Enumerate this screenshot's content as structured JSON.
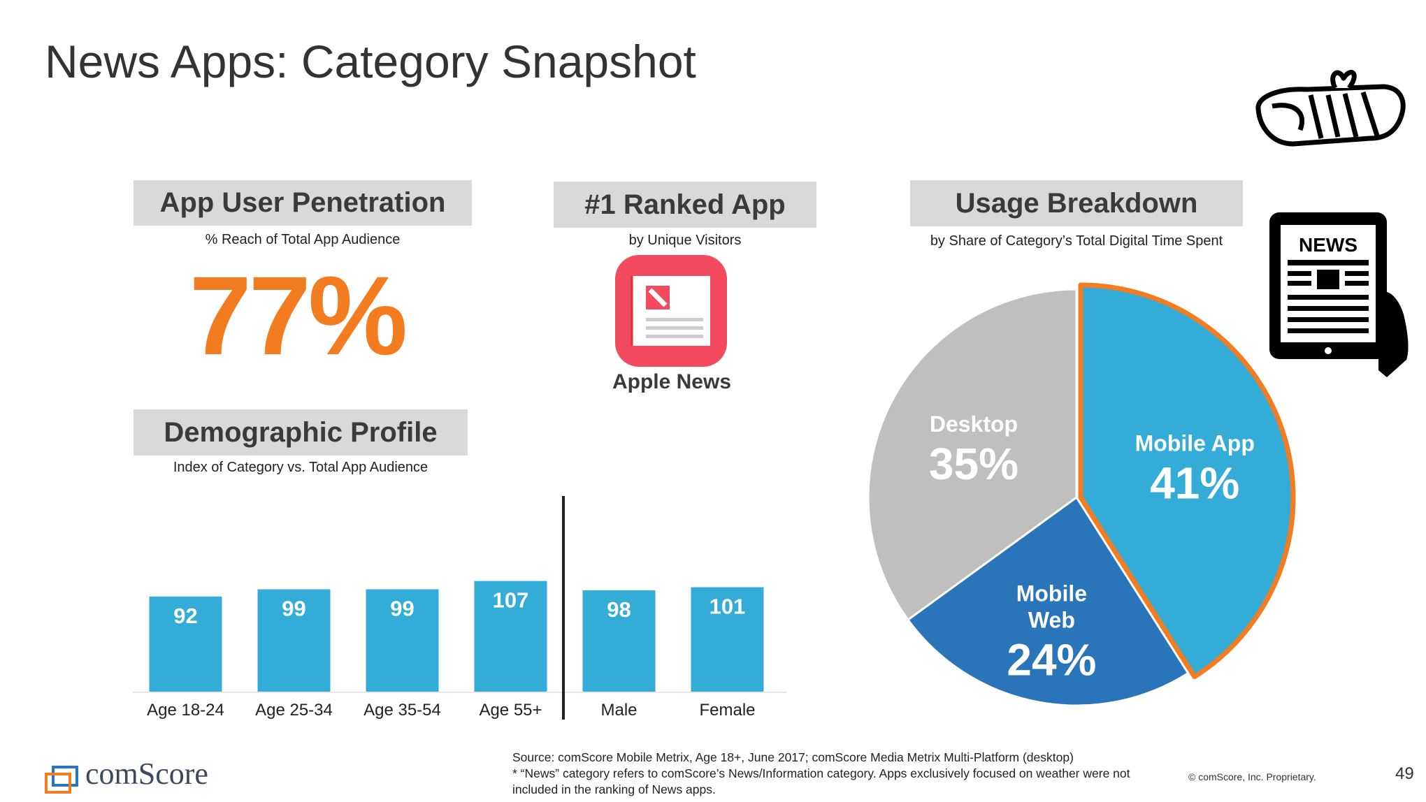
{
  "page_title": "News Apps: Category Snapshot",
  "penetration": {
    "header": "App User Penetration",
    "subtitle": "% Reach of Total App Audience",
    "value": "77%"
  },
  "ranked_app": {
    "header": "#1 Ranked App",
    "subtitle": "by Unique Visitors",
    "app_name": "Apple News"
  },
  "usage": {
    "header": "Usage Breakdown",
    "subtitle": "by Share of Category’s Total Digital Time Spent"
  },
  "demographic": {
    "header": "Demographic Profile",
    "subtitle": "Index of Category vs. Total App Audience"
  },
  "colors": {
    "bar": "#33acd7",
    "orange": "#f47c20",
    "mobile_app": "#33acd7",
    "mobile_web": "#2a74ba",
    "desktop": "#bfbfbf"
  },
  "chart_data": [
    {
      "type": "bar",
      "categories": [
        "Age 18-24",
        "Age 25-34",
        "Age 35-54",
        "Age 55+",
        "Male",
        "Female"
      ],
      "values": [
        92,
        99,
        99,
        107,
        98,
        101
      ],
      "data_labels": [
        "92",
        "99",
        "99",
        "107",
        "98",
        "101"
      ],
      "ylim": [
        0,
        110
      ],
      "grid": false
    },
    {
      "type": "pie",
      "slices": [
        {
          "name": "Mobile App",
          "value": 41,
          "label": "41%",
          "highlight": true
        },
        {
          "name": "Mobile Web",
          "value": 24,
          "label": "24%"
        },
        {
          "name": "Desktop",
          "value": 35,
          "label": "35%"
        }
      ]
    }
  ],
  "news_icon_text": "NEWS",
  "footer": {
    "source_line1": "Source: comScore Mobile Metrix, Age 18+, June 2017; comScore Media Metrix Multi-Platform (desktop)",
    "source_line2": "* “News” category refers to comScore’s News/Information category. Apps exclusively focused on weather were not included in the ranking of News apps.",
    "copyright": "© comScore, Inc. Proprietary.",
    "page_number": "49",
    "logo_text": "comScore"
  }
}
